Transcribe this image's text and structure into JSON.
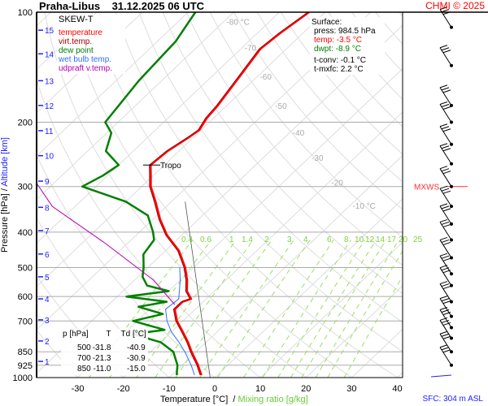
{
  "header": {
    "title": "Praha-Libus    31.12.2025 06 UTC",
    "credit": "CHMI © 2025"
  },
  "legend": {
    "title": "SKEW-T",
    "items": [
      {
        "label": "temperature",
        "color": "#ff0000"
      },
      {
        "label": "virt.temp.",
        "color": "#a00000"
      },
      {
        "label": "dew point",
        "color": "#008000"
      },
      {
        "label": "wet bulb temp.",
        "color": "#3070ff"
      },
      {
        "label": "udpraft v.temp.",
        "color": "#b000b0"
      }
    ]
  },
  "surface": {
    "title": "Surface:",
    "press": "press: 984.5 hPa",
    "temp": "temp: -3.5 °C",
    "dwpt": "dwpt: -8.9 °C",
    "tconv": "t-conv: -0.1 °C",
    "tmxfc": "t-mxfc: 2.2 °C"
  },
  "table": {
    "headers": [
      "p [hPa]",
      "T",
      "Td [°C]"
    ],
    "rows": [
      [
        "500",
        "-31.8",
        "-40.9"
      ],
      [
        "700",
        "-21.3",
        "-30.9"
      ],
      [
        "850",
        "-11.0",
        "-15.0"
      ]
    ]
  },
  "footer": {
    "xlabel": "Temperature [°C]  /",
    "mixlabel": "Mixing ratio [g/kg]",
    "sfc": "SFC: 304 m ASL"
  },
  "chart_data": {
    "type": "line",
    "title": "Praha-Libus 31.12.2025 06 UTC",
    "xlabel": "Temperature [°C] / Mixing ratio [g/kg]",
    "ylabel": "Pressure [hPa]",
    "ylabel2": "Altitude [km]",
    "ylim": [
      1000,
      100
    ],
    "xlim_at_1000hPa": [
      -47,
      38
    ],
    "x_ticks": [
      -30,
      -20,
      -10,
      0,
      10,
      20,
      30,
      40
    ],
    "pressure_ticks": [
      100,
      200,
      300,
      400,
      500,
      600,
      700,
      850,
      925,
      1000
    ],
    "altitude_ticks": [
      {
        "km": "1",
        "p": 903
      },
      {
        "km": "2",
        "p": 794
      },
      {
        "km": "3",
        "p": 695
      },
      {
        "km": "4",
        "p": 609
      },
      {
        "km": "5",
        "p": 530
      },
      {
        "km": "6",
        "p": 459
      },
      {
        "km": "7",
        "p": 396
      },
      {
        "km": "8",
        "p": 342
      },
      {
        "km": "9",
        "p": 290
      },
      {
        "km": "10",
        "p": 247
      },
      {
        "km": "11",
        "p": 211
      },
      {
        "km": "12",
        "p": 180
      },
      {
        "km": "13",
        "p": 154
      },
      {
        "km": "14",
        "p": 130
      },
      {
        "km": "15",
        "p": 112
      }
    ],
    "isotherm_labels": [
      {
        "t": -80,
        "label": "-80 °C",
        "p": 106
      },
      {
        "t": -70,
        "label": "-70",
        "p": 125
      },
      {
        "t": -60,
        "label": "-60",
        "p": 150
      },
      {
        "t": -50,
        "label": "-50",
        "p": 180
      },
      {
        "t": -40,
        "label": "-40",
        "p": 213
      },
      {
        "t": -30,
        "label": "-30",
        "p": 250
      },
      {
        "t": -20,
        "label": "-20",
        "p": 292
      },
      {
        "t": -10,
        "label": "-10 °C",
        "p": 338
      }
    ],
    "mixing_ratios": [
      "0.4",
      "0.6",
      "1",
      "1.4",
      "2",
      "3",
      "4",
      "6",
      "8",
      "10",
      "12",
      "14",
      "17",
      "20",
      "25"
    ],
    "series": [
      {
        "name": "temperature",
        "color": "#ff0000",
        "points": [
          [
            984.5,
            -3.5
          ],
          [
            925,
            -6.5
          ],
          [
            850,
            -11.0
          ],
          [
            800,
            -14
          ],
          [
            750,
            -17.5
          ],
          [
            700,
            -21.3
          ],
          [
            650,
            -24.5
          ],
          [
            620,
            -24.5
          ],
          [
            609,
            -23.3
          ],
          [
            580,
            -26
          ],
          [
            541,
            -28.5
          ],
          [
            500,
            -31.8
          ],
          [
            450,
            -37
          ],
          [
            408,
            -43.2
          ],
          [
            369,
            -48.4
          ],
          [
            330,
            -53.5
          ],
          [
            300,
            -58
          ],
          [
            278,
            -60.8
          ],
          [
            262,
            -63
          ],
          [
            240,
            -62.5
          ],
          [
            220,
            -61
          ],
          [
            210,
            -60.4
          ],
          [
            195,
            -61.5
          ],
          [
            180,
            -62
          ],
          [
            154,
            -63.6
          ],
          [
            126,
            -65.7
          ],
          [
            114,
            -65
          ],
          [
            100,
            -63.5
          ]
        ]
      },
      {
        "name": "dew point",
        "color": "#008000",
        "points": [
          [
            984.5,
            -8.9
          ],
          [
            925,
            -11
          ],
          [
            850,
            -15.0
          ],
          [
            800,
            -20
          ],
          [
            760,
            -28
          ],
          [
            740,
            -22
          ],
          [
            700,
            -30.9
          ],
          [
            670,
            -26
          ],
          [
            640,
            -33
          ],
          [
            620,
            -28
          ],
          [
            600,
            -38
          ],
          [
            580,
            -30
          ],
          [
            560,
            -36
          ],
          [
            530,
            -39
          ],
          [
            500,
            -40.9
          ],
          [
            460,
            -44
          ],
          [
            420,
            -45
          ],
          [
            400,
            -47
          ],
          [
            360,
            -52
          ],
          [
            330,
            -60
          ],
          [
            300,
            -73
          ],
          [
            280,
            -71
          ],
          [
            262,
            -70
          ],
          [
            240,
            -76
          ],
          [
            214,
            -79
          ],
          [
            200,
            -82.8
          ],
          [
            154,
            -85
          ],
          [
            120,
            -86
          ],
          [
            100,
            -88.4
          ]
        ]
      },
      {
        "name": "wet bulb temp.",
        "color": "#3070ff",
        "points": [
          [
            984.5,
            -5
          ],
          [
            925,
            -8
          ],
          [
            850,
            -12.5
          ],
          [
            800,
            -16
          ],
          [
            750,
            -20
          ],
          [
            700,
            -23.5
          ],
          [
            650,
            -26.5
          ],
          [
            609,
            -26
          ],
          [
            541,
            -30
          ],
          [
            500,
            -33
          ]
        ]
      },
      {
        "name": "udpraft v.temp.",
        "color": "#b000b0",
        "points": [
          [
            631,
            -25.6
          ],
          [
            540,
            -36
          ],
          [
            430,
            -54.7
          ],
          [
            340,
            -75
          ],
          [
            258,
            -91.6
          ]
        ]
      }
    ],
    "annotations": [
      {
        "text": "Tropo",
        "p": 262
      },
      {
        "text": "MXWS",
        "p": 300
      }
    ],
    "wind_levels": [
      110,
      140,
      180,
      200,
      230,
      260,
      300,
      340,
      380,
      420,
      470,
      520,
      560,
      620,
      680,
      730,
      780,
      850,
      925,
      984.5
    ]
  }
}
